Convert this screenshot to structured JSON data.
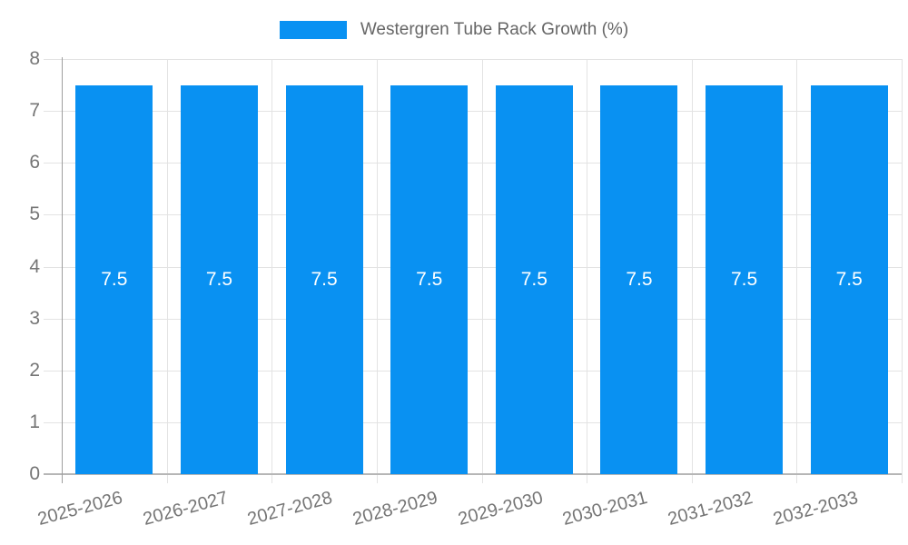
{
  "legend": {
    "label": "Westergren Tube Rack Growth (%)"
  },
  "chart_data": {
    "type": "bar",
    "title": "Westergren Tube Rack Growth (%)",
    "categories": [
      "2025-2026",
      "2026-2027",
      "2027-2028",
      "2028-2029",
      "2029-2030",
      "2030-2031",
      "2031-2032",
      "2032-2033"
    ],
    "values": [
      7.5,
      7.5,
      7.5,
      7.5,
      7.5,
      7.5,
      7.5,
      7.5
    ],
    "bar_value_labels": [
      "7.5",
      "7.5",
      "7.5",
      "7.5",
      "7.5",
      "7.5",
      "7.5",
      "7.5"
    ],
    "xlabel": "",
    "ylabel": "",
    "ylim": [
      0,
      8
    ],
    "yticks": [
      "0",
      "1",
      "2",
      "3",
      "4",
      "5",
      "6",
      "7",
      "8"
    ],
    "grid": true,
    "legend_position": "top"
  },
  "colors": {
    "bar": "#0991F2",
    "grid": "#E3E3E3",
    "x_axis_line": "#B6B6B6",
    "y_axis_line": "#9E9E9E",
    "tick_text": "#757575",
    "legend_text": "#666666",
    "bar_value_text": "#FFFFFF",
    "background": "#FFFFFF"
  }
}
